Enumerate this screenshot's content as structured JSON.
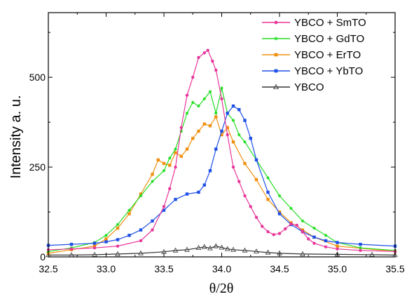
{
  "chart_data": {
    "type": "line",
    "xlabel": "θ/2θ",
    "ylabel": "Intensity  a. u.",
    "xlim": [
      32.5,
      35.5
    ],
    "ylim": [
      0,
      680
    ],
    "xticks": [
      "32.5",
      "33.0",
      "33.5",
      "34.0",
      "34.5",
      "35.0",
      "35.5"
    ],
    "yticks": [
      "0",
      "250",
      "500"
    ],
    "grid": false,
    "legend_position": "top-right",
    "series": [
      {
        "name": "YBCO + SmTO",
        "color": "#e8359a",
        "marker": "circle",
        "x": [
          32.5,
          32.7,
          32.9,
          33.1,
          33.3,
          33.4,
          33.5,
          33.55,
          33.6,
          33.65,
          33.7,
          33.75,
          33.8,
          33.85,
          33.88,
          33.92,
          33.95,
          34.0,
          34.05,
          34.1,
          34.15,
          34.2,
          34.25,
          34.3,
          34.35,
          34.4,
          34.45,
          34.5,
          34.55,
          34.6,
          34.65,
          34.7,
          34.75,
          34.8,
          34.9,
          35.0,
          35.2,
          35.5
        ],
        "y": [
          20,
          22,
          25,
          30,
          45,
          75,
          140,
          190,
          250,
          360,
          450,
          500,
          555,
          568,
          575,
          545,
          520,
          440,
          340,
          250,
          210,
          170,
          140,
          110,
          85,
          70,
          62,
          65,
          78,
          92,
          88,
          70,
          50,
          38,
          28,
          22,
          18,
          15
        ]
      },
      {
        "name": "YBCO + GdTO",
        "color": "#22dd22",
        "marker": "star",
        "x": [
          32.5,
          32.7,
          32.9,
          33.0,
          33.1,
          33.2,
          33.3,
          33.4,
          33.5,
          33.55,
          33.6,
          33.65,
          33.7,
          33.75,
          33.8,
          33.85,
          33.9,
          33.95,
          34.0,
          34.05,
          34.1,
          34.15,
          34.2,
          34.3,
          34.4,
          34.5,
          34.6,
          34.7,
          34.8,
          34.9,
          35.0,
          35.2,
          35.5
        ],
        "y": [
          15,
          25,
          40,
          60,
          90,
          130,
          170,
          210,
          240,
          275,
          300,
          350,
          400,
          430,
          420,
          440,
          460,
          400,
          470,
          400,
          380,
          340,
          320,
          270,
          220,
          170,
          135,
          100,
          80,
          60,
          40,
          25,
          18
        ]
      },
      {
        "name": "YBCO + ErTO",
        "color": "#f09010",
        "marker": "square",
        "x": [
          32.5,
          32.7,
          32.9,
          33.0,
          33.1,
          33.2,
          33.3,
          33.4,
          33.45,
          33.5,
          33.55,
          33.6,
          33.65,
          33.7,
          33.75,
          33.8,
          33.85,
          33.9,
          33.95,
          34.0,
          34.05,
          34.1,
          34.2,
          34.3,
          34.4,
          34.5,
          34.6,
          34.7,
          34.8,
          35.0,
          35.5
        ],
        "y": [
          10,
          20,
          30,
          50,
          80,
          120,
          175,
          230,
          270,
          260,
          255,
          290,
          280,
          300,
          330,
          350,
          370,
          365,
          390,
          340,
          360,
          320,
          260,
          215,
          160,
          125,
          95,
          75,
          55,
          30,
          15
        ]
      },
      {
        "name": "YBCO + YbTO",
        "color": "#1e4fe6",
        "marker": "square",
        "x": [
          32.5,
          32.7,
          32.9,
          33.0,
          33.1,
          33.2,
          33.3,
          33.4,
          33.5,
          33.6,
          33.7,
          33.8,
          33.85,
          33.9,
          33.95,
          34.0,
          34.05,
          34.1,
          34.15,
          34.2,
          34.25,
          34.3,
          34.4,
          34.5,
          34.6,
          34.7,
          34.8,
          34.9,
          35.0,
          35.2,
          35.5
        ],
        "y": [
          32,
          35,
          38,
          42,
          48,
          60,
          75,
          100,
          130,
          160,
          175,
          180,
          200,
          240,
          300,
          350,
          400,
          420,
          410,
          380,
          330,
          270,
          180,
          120,
          90,
          70,
          55,
          45,
          40,
          35,
          30
        ]
      },
      {
        "name": "YBCO",
        "color": "#333333",
        "marker": "triangle",
        "x": [
          32.5,
          32.7,
          32.9,
          33.1,
          33.3,
          33.5,
          33.6,
          33.7,
          33.8,
          33.85,
          33.9,
          33.95,
          34.0,
          34.05,
          34.1,
          34.2,
          34.3,
          34.4,
          34.5,
          34.7,
          35.0,
          35.3,
          35.5
        ],
        "y": [
          5,
          5,
          6,
          8,
          10,
          14,
          18,
          20,
          25,
          28,
          24,
          30,
          26,
          22,
          20,
          18,
          15,
          12,
          10,
          8,
          7,
          6,
          5
        ]
      }
    ]
  }
}
